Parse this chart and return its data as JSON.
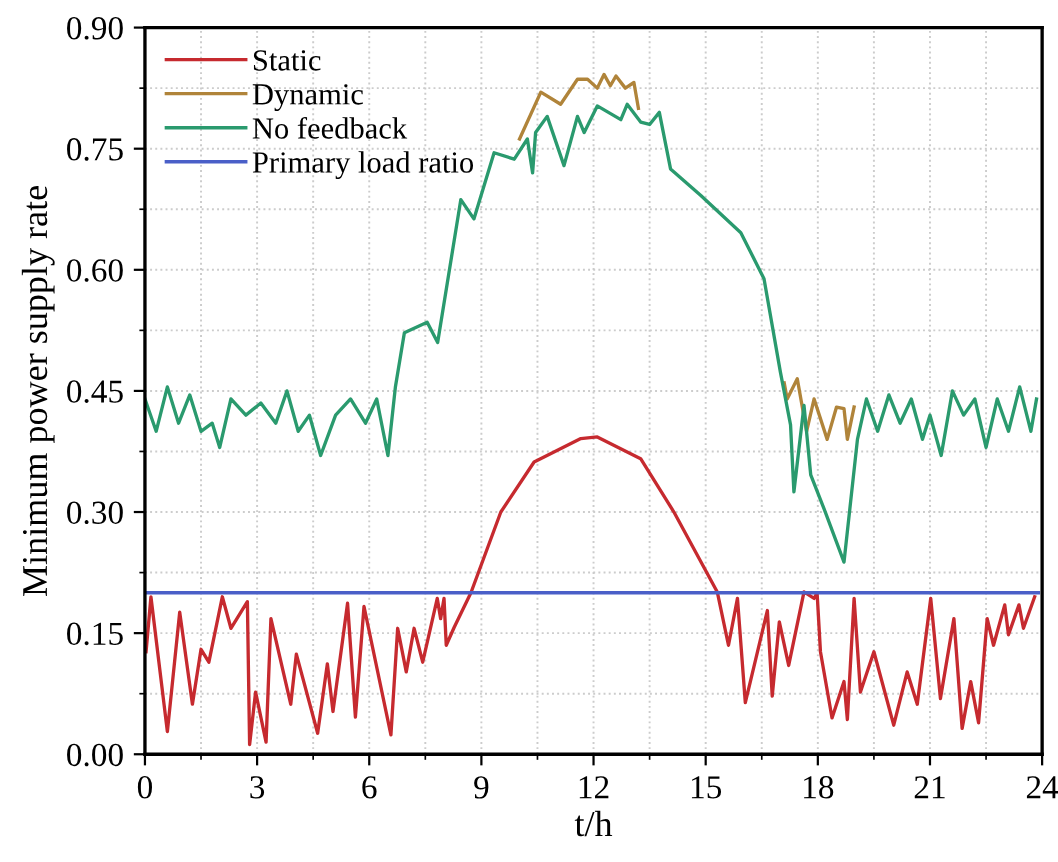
{
  "chart_data": {
    "type": "line",
    "xlabel": "t/h",
    "ylabel": "Minimum power supply rate",
    "xlim": [
      0,
      24
    ],
    "xticks": [
      0,
      3,
      6,
      9,
      12,
      15,
      18,
      21,
      24
    ],
    "ylim": [
      0,
      0.9
    ],
    "yticks": [
      {
        "value": 0,
        "label": "0.00"
      },
      {
        "value": 0.15,
        "label": "0.15"
      },
      {
        "value": 0.3,
        "label": "0.30"
      },
      {
        "value": 0.45,
        "label": "0.45"
      },
      {
        "value": 0.6,
        "label": "0.60"
      },
      {
        "value": 0.75,
        "label": "0.75"
      },
      {
        "value": 0.9,
        "label": "0.90"
      }
    ],
    "grid": true,
    "legend": "top left",
    "marker": "none",
    "line_style": "solid",
    "series": [
      {
        "name": "Static",
        "color": "#c62a2f",
        "x": [
          0.03,
          0.16,
          0.6,
          0.93,
          1.27,
          1.5,
          1.71,
          2.07,
          2.3,
          2.74,
          2.8,
          2.96,
          3.24,
          3.37,
          3.9,
          4.05,
          4.62,
          4.88,
          5.03,
          5.42,
          5.63,
          5.86,
          6.58,
          6.76,
          6.99,
          7.2,
          7.43,
          7.82,
          7.91,
          8.0,
          8.06,
          8.27,
          8.72,
          9.52,
          10.41,
          11.66,
          12.1,
          13.26,
          14.15,
          15.31,
          15.61,
          15.85,
          16.06,
          16.65,
          16.78,
          16.97,
          17.22,
          17.63,
          17.9,
          17.98,
          18.07,
          18.38,
          18.7,
          18.79,
          18.97,
          19.14,
          19.5,
          20.03,
          20.39,
          20.66,
          21.02,
          21.28,
          21.64,
          21.86,
          22.09,
          22.3,
          22.53,
          22.7,
          23.0,
          23.1,
          23.38,
          23.5,
          23.8
        ],
        "values": [
          0.127,
          0.195,
          0.028,
          0.176,
          0.062,
          0.13,
          0.114,
          0.195,
          0.156,
          0.189,
          0.012,
          0.077,
          0.015,
          0.168,
          0.062,
          0.124,
          0.026,
          0.112,
          0.053,
          0.187,
          0.046,
          0.183,
          0.024,
          0.156,
          0.102,
          0.156,
          0.114,
          0.193,
          0.168,
          0.193,
          0.135,
          0.157,
          0.2,
          0.3,
          0.362,
          0.391,
          0.393,
          0.366,
          0.3,
          0.201,
          0.135,
          0.193,
          0.064,
          0.178,
          0.072,
          0.164,
          0.11,
          0.201,
          0.193,
          0.2,
          0.127,
          0.045,
          0.09,
          0.043,
          0.193,
          0.077,
          0.127,
          0.036,
          0.102,
          0.062,
          0.193,
          0.069,
          0.168,
          0.032,
          0.09,
          0.039,
          0.168,
          0.135,
          0.185,
          0.148,
          0.185,
          0.156,
          0.195
        ]
      },
      {
        "name": "Dynamic",
        "color": "#b0843a",
        "x": [
          10.02,
          10.59,
          11.12,
          11.57,
          11.84,
          12.1,
          12.28,
          12.45,
          12.6,
          12.85,
          13.08,
          13.2,
          null,
          17.1,
          17.18,
          17.45,
          17.7,
          17.9,
          18.25,
          18.5,
          18.7,
          18.79,
          18.97
        ],
        "values": [
          0.762,
          0.82,
          0.805,
          0.836,
          0.836,
          0.825,
          0.842,
          0.828,
          0.84,
          0.825,
          0.832,
          0.8,
          null,
          0.46,
          0.44,
          0.465,
          0.4,
          0.44,
          0.39,
          0.43,
          0.428,
          0.39,
          0.43
        ]
      },
      {
        "name": "No feedback",
        "color": "#2a9a6e",
        "x": [
          0,
          0.3,
          0.6,
          0.9,
          1.2,
          1.5,
          1.8,
          2.0,
          2.3,
          2.7,
          3.1,
          3.5,
          3.8,
          4.1,
          4.4,
          4.7,
          5.1,
          5.5,
          5.9,
          6.2,
          6.5,
          6.7,
          6.94,
          7.55,
          7.83,
          8.45,
          8.8,
          9.34,
          9.88,
          10.23,
          10.37,
          10.45,
          10.76,
          11.21,
          11.57,
          11.75,
          12.1,
          12.73,
          12.9,
          13.26,
          13.5,
          13.76,
          14.06,
          14.87,
          15.94,
          16.56,
          17.0,
          17.27,
          17.36,
          17.63,
          17.81,
          18.2,
          18.7,
          19.06,
          19.3,
          19.6,
          19.9,
          20.2,
          20.5,
          20.8,
          21.0,
          21.3,
          21.6,
          21.9,
          22.2,
          22.5,
          22.8,
          23.1,
          23.4,
          23.7,
          23.85
        ],
        "values": [
          0.44,
          0.4,
          0.455,
          0.41,
          0.445,
          0.4,
          0.41,
          0.38,
          0.44,
          0.42,
          0.435,
          0.41,
          0.45,
          0.4,
          0.42,
          0.37,
          0.42,
          0.44,
          0.41,
          0.44,
          0.37,
          0.455,
          0.522,
          0.535,
          0.51,
          0.687,
          0.663,
          0.745,
          0.737,
          0.762,
          0.72,
          0.77,
          0.79,
          0.729,
          0.79,
          0.77,
          0.803,
          0.786,
          0.805,
          0.783,
          0.78,
          0.795,
          0.725,
          0.692,
          0.646,
          0.589,
          0.473,
          0.408,
          0.325,
          0.432,
          0.346,
          0.3,
          0.238,
          0.39,
          0.44,
          0.4,
          0.445,
          0.41,
          0.44,
          0.39,
          0.42,
          0.37,
          0.45,
          0.42,
          0.44,
          0.38,
          0.44,
          0.4,
          0.455,
          0.4,
          0.44
        ]
      },
      {
        "name": "Primary load ratio",
        "color": "#4a5fc8",
        "x": [
          0,
          23.9
        ],
        "values": [
          0.2,
          0.2
        ]
      }
    ]
  }
}
